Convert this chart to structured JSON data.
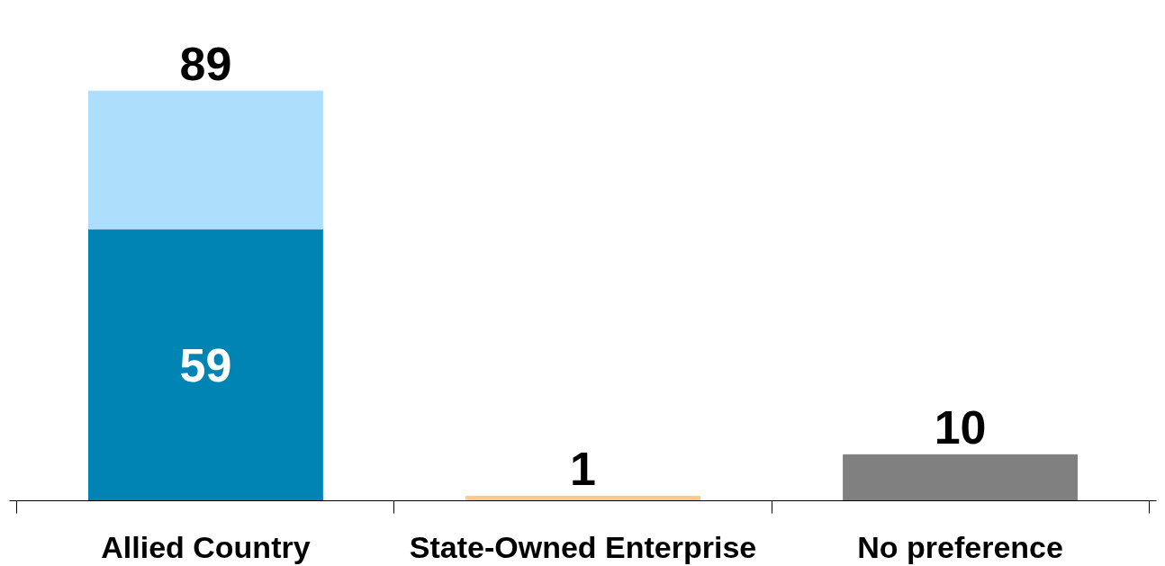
{
  "chart_data": {
    "type": "bar",
    "stacked": true,
    "categories": [
      "Allied Country",
      "State-Owned Enterprise",
      "No preference"
    ],
    "series": [
      {
        "colors": [
          "#0084b4",
          "#fcc98a",
          "#808080"
        ],
        "values": [
          59,
          1,
          10
        ],
        "value_labels": [
          "59",
          null,
          null
        ]
      },
      {
        "color": "#addffd",
        "values": [
          30,
          null,
          null
        ]
      }
    ],
    "totals": [
      "89",
      "1",
      "10"
    ],
    "grid": false,
    "tick_labels": "x"
  }
}
